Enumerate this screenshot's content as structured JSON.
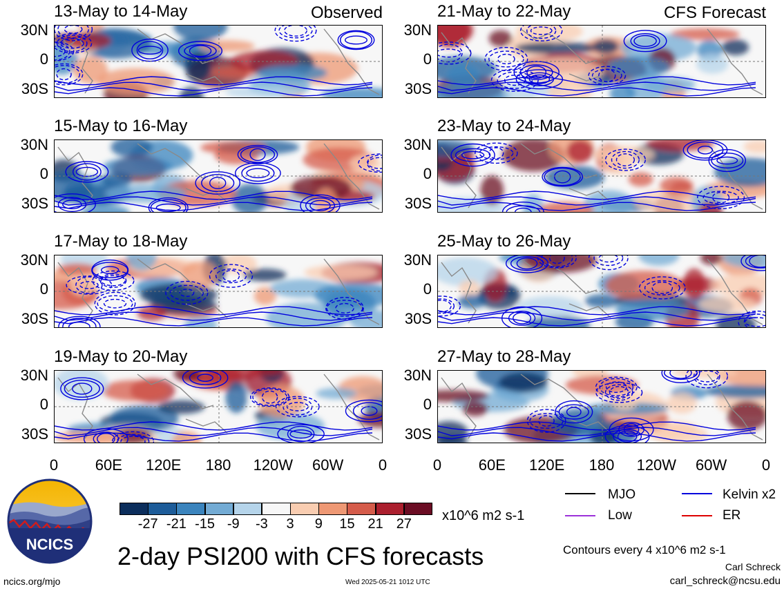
{
  "panels": [
    {
      "title": "13-May to 14-May",
      "tag": "Observed",
      "seed": 3
    },
    {
      "title": "21-May to 22-May",
      "tag": "CFS Forecast",
      "seed": 11
    },
    {
      "title": "15-May to 16-May",
      "tag": "",
      "seed": 5
    },
    {
      "title": "23-May to 24-May",
      "tag": "",
      "seed": 13
    },
    {
      "title": "17-May to 18-May",
      "tag": "",
      "seed": 7
    },
    {
      "title": "25-May to 26-May",
      "tag": "",
      "seed": 17
    },
    {
      "title": "19-May to 20-May",
      "tag": "",
      "seed": 9
    },
    {
      "title": "27-May to 28-May",
      "tag": "",
      "seed": 19
    }
  ],
  "y_labels": [
    "30N",
    "0",
    "30S"
  ],
  "x_labels": [
    "0",
    "60E",
    "120E",
    "180",
    "120W",
    "60W",
    "0"
  ],
  "chart_data": {
    "type": "heatmap",
    "title": "2-day PSI200 with CFS forecasts",
    "colorbar": {
      "unit": "x10^6 m2 s-1",
      "ticks": [
        "-27",
        "-21",
        "-15",
        "-9",
        "-3",
        "3",
        "9",
        "15",
        "21",
        "27"
      ],
      "colors": [
        "#0c2e5c",
        "#1d5c99",
        "#3b84bd",
        "#73abd4",
        "#b5d4ea",
        "#f7f7f7",
        "#f9cdb1",
        "#ee9874",
        "#d55c4b",
        "#ab1f2e",
        "#6b0d24"
      ]
    },
    "x_range": [
      "0",
      "0"
    ],
    "y_range": [
      "30S",
      "30N"
    ],
    "contour_interval": "Contours every 4 x10^6 m2 s-1"
  },
  "legend": [
    {
      "label": "MJO",
      "color": "#000000"
    },
    {
      "label": "Kelvin x2",
      "color": "#0000dd"
    },
    {
      "label": "Low",
      "color": "#9b30d9"
    },
    {
      "label": "ER",
      "color": "#dd0000"
    }
  ],
  "footer": {
    "logo_text": "NCICS",
    "url": "ncics.org/mjo",
    "timestamp": "Wed 2025-05-21 1012 UTC",
    "author": "Carl Schreck",
    "email": "carl_schreck@ncsu.edu",
    "contours": "Contours every 4 x10^6 m2 s-1"
  },
  "main_title": "2-day PSI200 with CFS forecasts"
}
